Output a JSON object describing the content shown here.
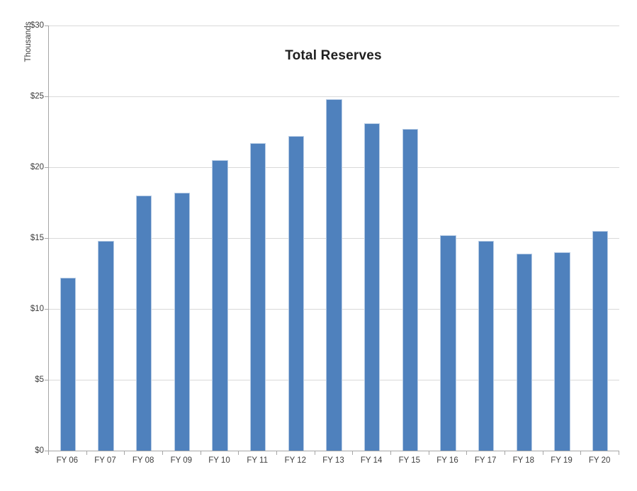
{
  "chart_data": {
    "type": "bar",
    "title": "Total Reserves",
    "ylabel": "Thousands",
    "xlabel": "",
    "categories": [
      "FY 06",
      "FY 07",
      "FY 08",
      "FY 09",
      "FY 10",
      "FY 11",
      "FY 12",
      "FY 13",
      "FY 14",
      "FY 15",
      "FY 16",
      "FY 17",
      "FY 18",
      "FY 19",
      "FY 20"
    ],
    "values": [
      12.2,
      14.8,
      18.0,
      18.2,
      20.5,
      21.7,
      22.2,
      24.8,
      23.1,
      22.7,
      15.2,
      14.8,
      13.9,
      14.0,
      15.5
    ],
    "ylim": [
      0,
      30
    ],
    "ytick_step": 5,
    "ytick_labels": [
      "$0",
      "$5",
      "$10",
      "$15",
      "$20",
      "$25",
      "$30"
    ],
    "grid": true,
    "legend": "none",
    "colors": {
      "bar_fill": "#4F81BD",
      "bar_border": "#B7CCE5",
      "gridline": "#D9D9D9",
      "axis_line": "#A6A6A6",
      "text": "#3D3D3D",
      "title_text": "#1F1F1F"
    }
  }
}
